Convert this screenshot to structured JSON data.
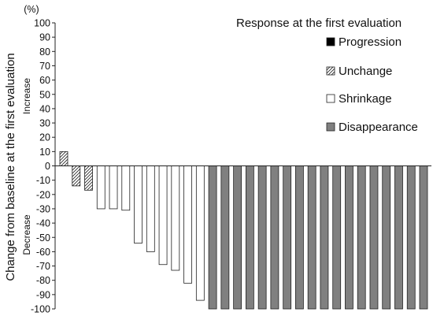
{
  "chart_data": {
    "type": "bar",
    "unit_label": "(%)",
    "ylabel": "Change from baseline at the first evaluation",
    "y_increase_label": "Increase",
    "y_decrease_label": "Decrease",
    "ylim": [
      -100,
      100
    ],
    "ytick_step": 10,
    "grid": false,
    "legend": {
      "title": "Response at the first evaluation",
      "placement": "right",
      "entries": [
        {
          "key": "progression",
          "label": "Progression"
        },
        {
          "key": "unchange",
          "label": "Unchange"
        },
        {
          "key": "shrinkage",
          "label": "Shrinkage"
        },
        {
          "key": "disappearance",
          "label": "Disappearance"
        }
      ]
    },
    "category_styles": {
      "progression": {
        "fill": "#000000",
        "pattern": "solid"
      },
      "unchange": {
        "fill": "#ffffff",
        "pattern": "hatch"
      },
      "shrinkage": {
        "fill": "#ffffff",
        "pattern": "solid"
      },
      "disappearance": {
        "fill": "#808080",
        "pattern": "solid"
      }
    },
    "bars": [
      {
        "value": 10,
        "category": "unchange"
      },
      {
        "value": -14,
        "category": "unchange"
      },
      {
        "value": -17,
        "category": "unchange"
      },
      {
        "value": -30,
        "category": "shrinkage"
      },
      {
        "value": -30,
        "category": "shrinkage"
      },
      {
        "value": -31,
        "category": "shrinkage"
      },
      {
        "value": -54,
        "category": "shrinkage"
      },
      {
        "value": -60,
        "category": "shrinkage"
      },
      {
        "value": -69,
        "category": "shrinkage"
      },
      {
        "value": -73,
        "category": "shrinkage"
      },
      {
        "value": -82,
        "category": "shrinkage"
      },
      {
        "value": -94,
        "category": "shrinkage"
      },
      {
        "value": -100,
        "category": "disappearance"
      },
      {
        "value": -100,
        "category": "disappearance"
      },
      {
        "value": -100,
        "category": "disappearance"
      },
      {
        "value": -100,
        "category": "disappearance"
      },
      {
        "value": -100,
        "category": "disappearance"
      },
      {
        "value": -100,
        "category": "disappearance"
      },
      {
        "value": -100,
        "category": "disappearance"
      },
      {
        "value": -100,
        "category": "disappearance"
      },
      {
        "value": -100,
        "category": "disappearance"
      },
      {
        "value": -100,
        "category": "disappearance"
      },
      {
        "value": -100,
        "category": "disappearance"
      },
      {
        "value": -100,
        "category": "disappearance"
      },
      {
        "value": -100,
        "category": "disappearance"
      },
      {
        "value": -100,
        "category": "disappearance"
      },
      {
        "value": -100,
        "category": "disappearance"
      },
      {
        "value": -100,
        "category": "disappearance"
      },
      {
        "value": -100,
        "category": "disappearance"
      },
      {
        "value": -100,
        "category": "disappearance"
      }
    ]
  }
}
